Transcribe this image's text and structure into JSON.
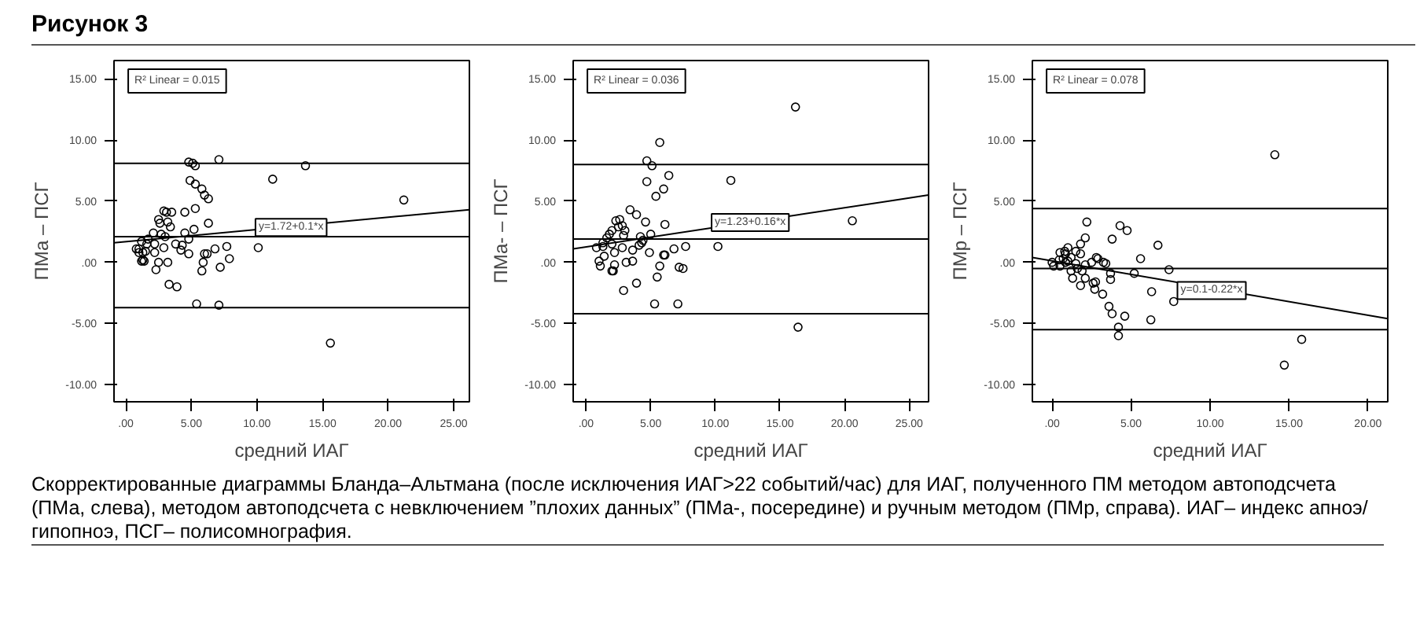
{
  "chart_data": [
    {
      "type": "scatter",
      "title": "Рисунок 3",
      "xlabel": "средний ИАГ",
      "ylabel": "ПМа – ПСГ",
      "grid": false,
      "xlim": [
        -0.9,
        26.2
      ],
      "ylim": [
        -11.4,
        16.5
      ],
      "xticks": [
        {
          "value": 0,
          "label": ".00"
        },
        {
          "value": 5,
          "label": "5.00"
        },
        {
          "value": 10,
          "label": "10.00"
        },
        {
          "value": 15,
          "label": "15.00"
        },
        {
          "value": 20,
          "label": "20.00"
        },
        {
          "value": 25,
          "label": "25.00"
        }
      ],
      "yticks": [
        {
          "value": -10,
          "label": "-10.00"
        },
        {
          "value": -5,
          "label": "-5.00"
        },
        {
          "value": 0,
          "label": ".00"
        },
        {
          "value": 5,
          "label": "5.00"
        },
        {
          "value": 10,
          "label": "10.00"
        },
        {
          "value": 15,
          "label": "15.00"
        }
      ],
      "series": [
        {
          "marker": "circle",
          "color": "#000000",
          "x": [
            7.1,
            4.8,
            5.1,
            5.3,
            13.7,
            11.2,
            4.9,
            5.3,
            5.8,
            6.0,
            6.3,
            21.2,
            5.3,
            2.9,
            3.1,
            3.5,
            4.5,
            2.5,
            2.6,
            3.2,
            6.3,
            3.4,
            5.2,
            2.1,
            2.7,
            3.0,
            4.5,
            4.8,
            1.7,
            1.2,
            1.6,
            2.2,
            3.8,
            4.3,
            2.9,
            4.2,
            7.7,
            6.8,
            10.1,
            1.0,
            1.5,
            2.2,
            1.0,
            1.3,
            4.8,
            6.0,
            6.2,
            1.3,
            1.2,
            1.4,
            2.5,
            3.2,
            5.9,
            7.9,
            7.2,
            5.8,
            2.3,
            3.3,
            3.9,
            5.4,
            7.1,
            15.6,
            0.8
          ],
          "values": [
            8.4,
            8.2,
            8.1,
            7.9,
            7.9,
            6.8,
            6.7,
            6.4,
            6.0,
            5.5,
            5.2,
            5.1,
            4.4,
            4.2,
            4.1,
            4.1,
            4.1,
            3.5,
            3.2,
            3.3,
            3.2,
            2.9,
            2.7,
            2.4,
            2.3,
            2.1,
            2.4,
            1.9,
            1.9,
            1.7,
            1.5,
            1.5,
            1.5,
            1.4,
            1.2,
            1.0,
            1.3,
            1.1,
            1.2,
            1.1,
            0.9,
            0.8,
            0.8,
            0.8,
            0.7,
            0.7,
            0.7,
            0.2,
            0.1,
            0.1,
            0.0,
            0.0,
            0.0,
            0.3,
            -0.4,
            -0.7,
            -0.6,
            -1.8,
            -2.0,
            -3.4,
            -3.5,
            -6.6,
            1.1
          ]
        },
        {
          "type": "line",
          "color": "#000000",
          "x": [
            -0.9,
            26.2
          ],
          "values": [
            1.6,
            4.3
          ]
        }
      ],
      "ref_lines": [
        {
          "axis": "y",
          "value": 8.1,
          "color": "#000000"
        },
        {
          "axis": "y",
          "value": 2.1,
          "color": "#000000"
        },
        {
          "axis": "y",
          "value": -3.7,
          "color": "#000000"
        }
      ],
      "annotations": [
        "R² Linear = 0.015",
        {
          "text": "y=1.72+0.1*x",
          "x": 12.6,
          "y": 2.85
        },
        "Скорректированные диаграммы Бланда–Альтмана (после исключения ИАГ>22 событий/час) для ИАГ, полученного ПМ методом автоподсчета (ПМа, слева), методом автоподсчета с невключением ”плохих данных” (ПМа-, посередине) и ручным методом (ПМр, справа). ИАГ– индекс апноэ/гипопноэ, ПСГ– полисомнография."
      ]
    },
    {
      "type": "scatter",
      "xlabel": "средний ИАГ",
      "ylabel": "ПМа- – ПСГ",
      "grid": false,
      "xlim": [
        -1.0,
        26.5
      ],
      "ylim": [
        -11.4,
        16.5
      ],
      "xticks": [
        {
          "value": 0,
          "label": ".00"
        },
        {
          "value": 5,
          "label": "5.00"
        },
        {
          "value": 10,
          "label": "10.00"
        },
        {
          "value": 15,
          "label": "15.00"
        },
        {
          "value": 20,
          "label": "20.00"
        },
        {
          "value": 25,
          "label": "25.00"
        }
      ],
      "yticks": [
        {
          "value": -10,
          "label": "-10.00"
        },
        {
          "value": -5,
          "label": "-5.00"
        },
        {
          "value": 0,
          "label": ".00"
        },
        {
          "value": 5,
          "label": "5.00"
        },
        {
          "value": 10,
          "label": "10.00"
        },
        {
          "value": 15,
          "label": "15.00"
        }
      ],
      "series": [
        {
          "marker": "circle",
          "color": "#000000",
          "x": [
            16.2,
            5.7,
            4.7,
            5.1,
            6.4,
            11.2,
            4.7,
            6.0,
            5.4,
            3.4,
            3.9,
            2.6,
            2.3,
            4.6,
            6.1,
            20.6,
            2.8,
            2.5,
            3.0,
            2.0,
            1.8,
            5.0,
            2.9,
            1.6,
            4.2,
            4.4,
            2.0,
            1.3,
            1.3,
            4.1,
            4.3,
            2.8,
            0.8,
            3.6,
            6.8,
            7.7,
            10.2,
            4.9,
            2.2,
            6.0,
            6.1,
            1.4,
            1.0,
            3.6,
            3.1,
            2.2,
            1.1,
            5.7,
            7.2,
            7.5,
            2.0,
            2.1,
            5.5,
            3.9,
            2.9,
            5.3,
            7.1,
            16.4
          ],
          "values": [
            12.7,
            9.8,
            8.3,
            7.9,
            7.1,
            6.7,
            6.6,
            6.0,
            5.4,
            4.3,
            3.9,
            3.5,
            3.4,
            3.3,
            3.1,
            3.4,
            3.0,
            2.9,
            2.6,
            2.6,
            2.3,
            2.3,
            2.2,
            2.0,
            2.1,
            1.8,
            1.5,
            1.6,
            1.3,
            1.4,
            1.6,
            1.2,
            1.2,
            1.0,
            1.1,
            1.3,
            1.3,
            0.8,
            0.8,
            0.6,
            0.6,
            0.5,
            0.1,
            0.1,
            0.0,
            -0.2,
            -0.3,
            -0.3,
            -0.4,
            -0.5,
            -0.7,
            -0.7,
            -1.2,
            -1.7,
            -2.3,
            -3.4,
            -3.4,
            -5.3
          ]
        },
        {
          "type": "line",
          "color": "#000000",
          "x": [
            -1.0,
            26.5
          ],
          "values": [
            1.1,
            5.5
          ]
        }
      ],
      "ref_lines": [
        {
          "axis": "y",
          "value": 8.0,
          "color": "#000000"
        },
        {
          "axis": "y",
          "value": 1.9,
          "color": "#000000"
        },
        {
          "axis": "y",
          "value": -4.2,
          "color": "#000000"
        }
      ],
      "annotations": [
        "R² Linear = 0.036",
        {
          "text": "y=1.23+0.16*x",
          "x": 12.7,
          "y": 3.25
        }
      ]
    },
    {
      "type": "scatter",
      "xlabel": "средний ИАГ",
      "ylabel": "ПМр – ПСГ",
      "grid": false,
      "xlim": [
        -1.25,
        21.25
      ],
      "ylim": [
        -11.4,
        16.5
      ],
      "xticks": [
        {
          "value": 0,
          "label": ".00"
        },
        {
          "value": 5,
          "label": "5.00"
        },
        {
          "value": 10,
          "label": "10.00"
        },
        {
          "value": 15,
          "label": "15.00"
        },
        {
          "value": 20,
          "label": "20.00"
        }
      ],
      "yticks": [
        {
          "value": -10,
          "label": "-10.00"
        },
        {
          "value": -5,
          "label": "-5.00"
        },
        {
          "value": 0,
          "label": ".00"
        },
        {
          "value": 5,
          "label": "5.00"
        },
        {
          "value": 10,
          "label": "10.00"
        },
        {
          "value": 15,
          "label": "15.00"
        }
      ],
      "series": [
        {
          "marker": "circle",
          "color": "#000000",
          "x": [
            14.1,
            2.2,
            4.3,
            4.75,
            2.1,
            3.8,
            1.8,
            1.0,
            6.7,
            5.6,
            2.8,
            2.9,
            0.8,
            0.5,
            0.85,
            1.5,
            1.8,
            1.2,
            1.0,
            0.7,
            0.45,
            0.0,
            0.1,
            0.5,
            0.85,
            1.5,
            2.1,
            2.5,
            3.25,
            3.4,
            1.2,
            1.6,
            1.9,
            1.3,
            2.1,
            2.75,
            2.6,
            3.7,
            3.7,
            5.2,
            7.4,
            1.8,
            2.7,
            3.2,
            6.3,
            7.7,
            3.6,
            3.8,
            4.6,
            6.25,
            4.2,
            4.2,
            15.8,
            14.7
          ],
          "values": [
            8.8,
            3.3,
            3.0,
            2.6,
            2.0,
            1.9,
            1.5,
            1.2,
            1.4,
            0.3,
            0.4,
            0.3,
            0.9,
            0.8,
            0.7,
            0.9,
            0.7,
            0.4,
            0.1,
            0.3,
            0.2,
            0.0,
            -0.3,
            -0.3,
            0.0,
            -0.1,
            -0.2,
            0.0,
            0.0,
            -0.1,
            -0.7,
            -0.5,
            -0.7,
            -1.3,
            -1.3,
            -1.6,
            -1.7,
            -0.9,
            -1.4,
            -0.9,
            -0.6,
            -1.9,
            -2.2,
            -2.6,
            -2.4,
            -3.2,
            -3.6,
            -4.2,
            -4.4,
            -4.7,
            -5.3,
            -6.0,
            -6.3,
            -8.4
          ]
        },
        {
          "type": "line",
          "color": "#000000",
          "x": [
            -1.25,
            21.25
          ],
          "values": [
            0.4,
            -4.6
          ]
        }
      ],
      "ref_lines": [
        {
          "axis": "y",
          "value": 4.4,
          "color": "#000000"
        },
        {
          "axis": "y",
          "value": -0.5,
          "color": "#000000"
        },
        {
          "axis": "y",
          "value": -5.5,
          "color": "#000000"
        }
      ],
      "annotations": [
        "R² Linear = 0.078",
        {
          "text": "y=0.1-0.22*x",
          "x": 10.1,
          "y": -2.3
        }
      ]
    }
  ]
}
